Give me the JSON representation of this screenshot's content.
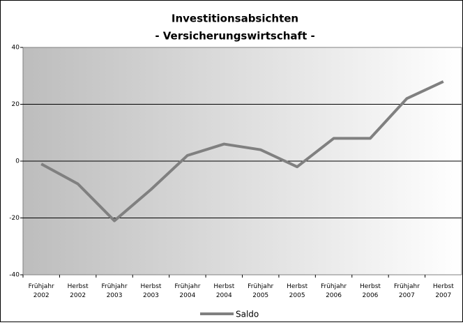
{
  "chart_data": {
    "type": "line",
    "title": "Investitionsabsichten",
    "subtitle": "- Versicherungswirtschaft -",
    "categories": [
      "Frühjahr 2002",
      "Herbst 2002",
      "Frühjahr 2003",
      "Herbst 2003",
      "Frühjahr 2004",
      "Herbst 2004",
      "Frühjahr 2005",
      "Herbst 2005",
      "Frühjahr 2006",
      "Herbst 2006",
      "Frühjahr 2007",
      "Herbst 2007"
    ],
    "series": [
      {
        "name": "Saldo",
        "color": "#808080",
        "values": [
          -1,
          -8,
          -21,
          -10,
          2,
          6,
          4,
          -2,
          8,
          8,
          22,
          28
        ]
      }
    ],
    "ylim": [
      -40,
      40
    ],
    "yticks": [
      -40,
      -20,
      0,
      20,
      40
    ],
    "grid": true,
    "legend": "bottom"
  }
}
